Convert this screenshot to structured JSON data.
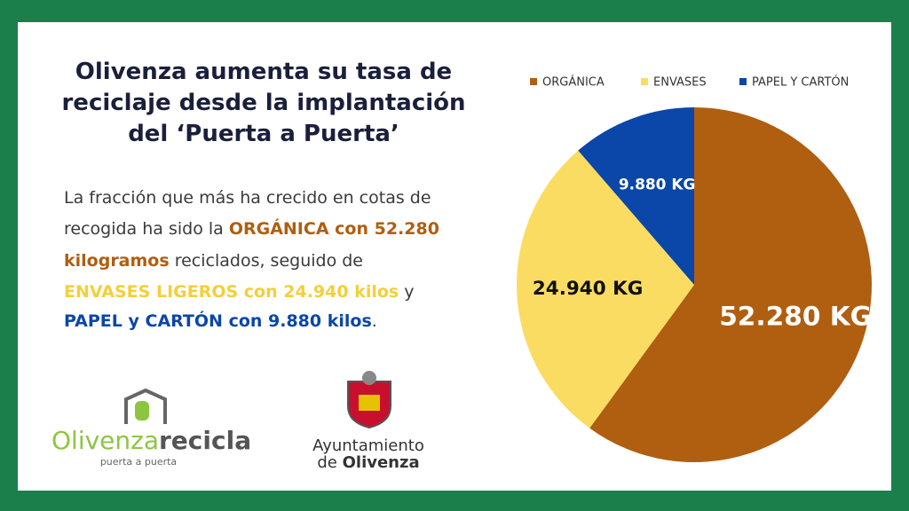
{
  "title": [
    "Olivenza aumenta su tasa de",
    "reciclaje desde la implantación",
    "del ‘Puerta a Puerta’"
  ],
  "body": [
    [
      "La fracción que más ha crecido en cotas de"
    ],
    [
      "recogida ha sido la ",
      "ORGÁNICA con 52.280"
    ],
    [
      "kilogramos",
      " reciclados, seguido de"
    ],
    [
      "ENVASES LIGEROS con 24.940 kilos",
      " y"
    ],
    [
      "PAPEL y CARTÓN con 9.880 kilos",
      "."
    ]
  ],
  "logo_left": {
    "name_a": "Olivenza",
    "name_b": "recicla",
    "tagline": "puerta a puerta"
  },
  "logo_right": {
    "line1": "Ayuntamiento",
    "line2a": "de ",
    "line2b": "Olivenza"
  },
  "chart_data": {
    "type": "pie",
    "categories": [
      "ORGÁNICA",
      "ENVASES",
      "PAPEL Y CARTÓN"
    ],
    "values": [
      52280,
      24940,
      9880
    ],
    "value_labels": [
      "52.280 KG",
      "24.940 KG",
      "9.880 KG"
    ],
    "colors": [
      "#b05e10",
      "#fbdc62",
      "#0a47a8"
    ],
    "legend": "top"
  }
}
